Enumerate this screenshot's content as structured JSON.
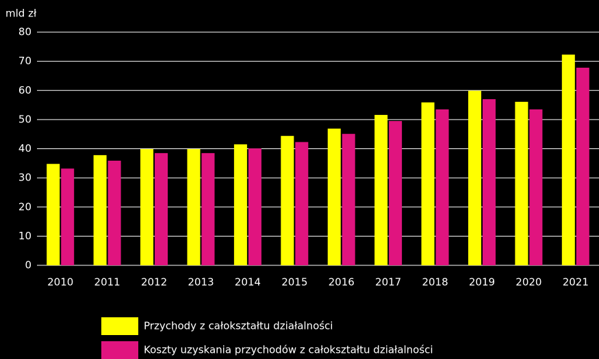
{
  "chart_data": {
    "type": "bar",
    "y_axis_label": "mld zł",
    "categories": [
      "2010",
      "2011",
      "2012",
      "2013",
      "2014",
      "2015",
      "2016",
      "2017",
      "2018",
      "2019",
      "2020",
      "2021"
    ],
    "series": [
      {
        "name": "Przychody z całokształtu działalności",
        "color": "#ffff00",
        "values": [
          34.8,
          37.8,
          39.9,
          39.9,
          41.5,
          44.4,
          46.9,
          51.6,
          55.9,
          59.9,
          56.1,
          72.3
        ]
      },
      {
        "name": "Koszty uzyskania przychodów z całokształtu działalności",
        "color": "#e0147f",
        "values": [
          33.2,
          35.9,
          38.5,
          38.5,
          40.1,
          42.3,
          45.1,
          49.5,
          53.5,
          57.0,
          53.5,
          67.8
        ]
      }
    ],
    "ylim": [
      0,
      80
    ],
    "yticks": [
      0,
      10,
      20,
      30,
      40,
      50,
      60,
      70,
      80
    ],
    "grid": true
  }
}
